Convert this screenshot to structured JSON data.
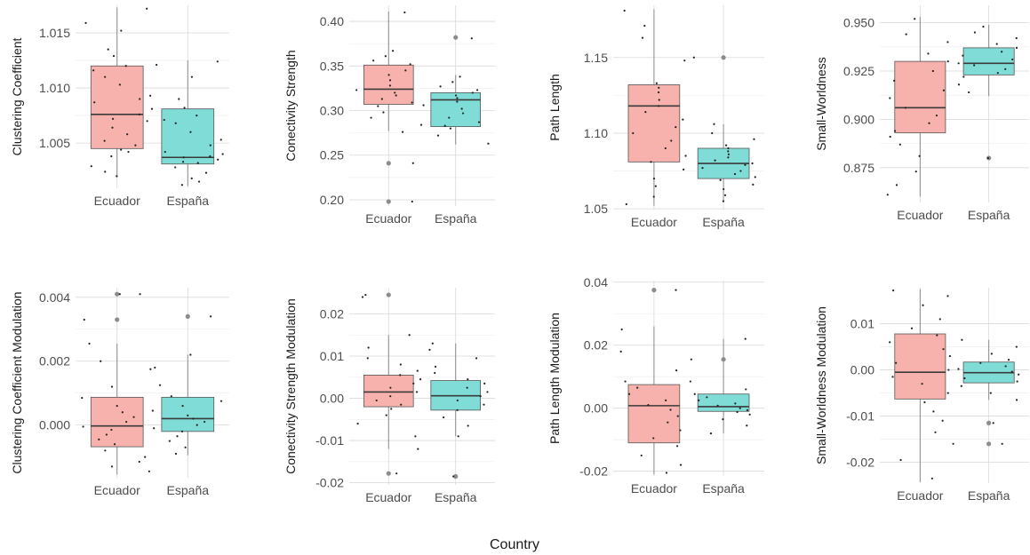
{
  "figure": {
    "xlabel": "Country"
  },
  "colors": {
    "Ecuador": "#f8b2ad",
    "España": "#7fdcd6",
    "grid": "#d9d9d9",
    "line": "#3a3a3a",
    "points": "#222222"
  },
  "chart_data": [
    {
      "type": "box",
      "ylabel": "Clustering Coefficient",
      "categories": [
        "Ecuador",
        "España"
      ],
      "ylim": [
        1.0009,
        1.0175
      ],
      "yticks": [
        1.005,
        1.01,
        1.015
      ],
      "ytick_labels": [
        "1.005",
        "1.010",
        "1.015"
      ],
      "boxes": [
        {
          "category": "Ecuador",
          "q1": 1.0045,
          "median": 1.0076,
          "q3": 1.012,
          "whisker_low": 1.0019,
          "whisker_high": 1.0173,
          "outliers": []
        },
        {
          "category": "España",
          "q1": 1.0031,
          "median": 1.0037,
          "q3": 1.0081,
          "whisker_low": 1.0011,
          "whisker_high": 1.0125,
          "outliers": []
        }
      ],
      "points": [
        {
          "category": "Ecuador",
          "y": [
            1.0172,
            1.0159,
            1.0152,
            1.0135,
            1.0129,
            1.012,
            1.0116,
            1.011,
            1.0103,
            1.0093,
            1.009,
            1.0087,
            1.0081,
            1.0076,
            1.0072,
            1.007,
            1.0064,
            1.0058,
            1.0052,
            1.0048,
            1.0044,
            1.0042,
            1.0038,
            1.0029,
            1.0024,
            1.002
          ]
        },
        {
          "category": "España",
          "y": [
            1.0124,
            1.0121,
            1.011,
            1.009,
            1.0082,
            1.0075,
            1.0071,
            1.0068,
            1.006,
            1.0053,
            1.0048,
            1.0042,
            1.004,
            1.0038,
            1.0037,
            1.0035,
            1.0033,
            1.0032,
            1.0028,
            1.0023,
            1.0018,
            1.0015,
            1.0012
          ]
        }
      ]
    },
    {
      "type": "box",
      "ylabel": "Conectivity Strength",
      "categories": [
        "Ecuador",
        "España"
      ],
      "ylim": [
        0.193,
        0.418
      ],
      "yticks": [
        0.2,
        0.25,
        0.3,
        0.35,
        0.4
      ],
      "ytick_labels": [
        "0.20",
        "0.25",
        "0.30",
        "0.35",
        "0.40"
      ],
      "boxes": [
        {
          "category": "Ecuador",
          "q1": 0.307,
          "median": 0.324,
          "q3": 0.351,
          "whisker_low": 0.277,
          "whisker_high": 0.411,
          "outliers": [
            0.241,
            0.198
          ]
        },
        {
          "category": "España",
          "q1": 0.282,
          "median": 0.312,
          "q3": 0.32,
          "whisker_low": 0.262,
          "whisker_high": 0.34,
          "outliers": [
            0.382
          ]
        }
      ],
      "points": [
        {
          "category": "Ecuador",
          "y": [
            0.41,
            0.367,
            0.361,
            0.356,
            0.352,
            0.345,
            0.34,
            0.334,
            0.328,
            0.323,
            0.32,
            0.317,
            0.313,
            0.309,
            0.305,
            0.298,
            0.292,
            0.284,
            0.276,
            0.241,
            0.198
          ]
        },
        {
          "category": "España",
          "y": [
            0.381,
            0.338,
            0.332,
            0.327,
            0.323,
            0.32,
            0.317,
            0.314,
            0.31,
            0.306,
            0.302,
            0.297,
            0.292,
            0.287,
            0.283,
            0.28,
            0.272,
            0.263
          ]
        }
      ]
    },
    {
      "type": "box",
      "ylabel": "Path Length",
      "categories": [
        "Ecuador",
        "España"
      ],
      "ylim": [
        1.0495,
        1.1845
      ],
      "yticks": [
        1.05,
        1.1,
        1.15
      ],
      "ytick_labels": [
        "1.05",
        "1.10",
        "1.15"
      ],
      "boxes": [
        {
          "category": "Ecuador",
          "q1": 1.081,
          "median": 1.118,
          "q3": 1.132,
          "whisker_low": 1.052,
          "whisker_high": 1.182,
          "outliers": []
        },
        {
          "category": "España",
          "q1": 1.07,
          "median": 1.08,
          "q3": 1.09,
          "whisker_low": 1.055,
          "whisker_high": 1.106,
          "outliers": [
            1.15
          ]
        }
      ],
      "points": [
        {
          "category": "Ecuador",
          "y": [
            1.181,
            1.171,
            1.163,
            1.148,
            1.133,
            1.13,
            1.127,
            1.122,
            1.118,
            1.114,
            1.109,
            1.104,
            1.1,
            1.095,
            1.09,
            1.085,
            1.081,
            1.076,
            1.07,
            1.065,
            1.058,
            1.053
          ]
        },
        {
          "category": "España",
          "y": [
            1.15,
            1.106,
            1.1,
            1.096,
            1.092,
            1.09,
            1.088,
            1.086,
            1.084,
            1.082,
            1.08,
            1.079,
            1.077,
            1.075,
            1.073,
            1.071,
            1.069,
            1.066,
            1.063,
            1.059,
            1.055
          ]
        }
      ]
    },
    {
      "type": "box",
      "ylabel": "Small-Worldness",
      "categories": [
        "Ecuador",
        "España"
      ],
      "ylim": [
        0.857,
        0.959
      ],
      "yticks": [
        0.875,
        0.9,
        0.925,
        0.95
      ],
      "ytick_labels": [
        "0.875",
        "0.900",
        "0.925",
        "0.950"
      ],
      "boxes": [
        {
          "category": "Ecuador",
          "q1": 0.893,
          "median": 0.906,
          "q3": 0.93,
          "whisker_low": 0.86,
          "whisker_high": 0.953,
          "outliers": []
        },
        {
          "category": "España",
          "q1": 0.923,
          "median": 0.929,
          "q3": 0.937,
          "whisker_low": 0.912,
          "whisker_high": 0.949,
          "outliers": [
            0.88
          ]
        }
      ],
      "points": [
        {
          "category": "Ecuador",
          "y": [
            0.952,
            0.944,
            0.94,
            0.934,
            0.93,
            0.925,
            0.92,
            0.915,
            0.911,
            0.906,
            0.902,
            0.898,
            0.894,
            0.891,
            0.887,
            0.881,
            0.873,
            0.866,
            0.861
          ]
        },
        {
          "category": "España",
          "y": [
            0.948,
            0.945,
            0.942,
            0.939,
            0.937,
            0.935,
            0.933,
            0.931,
            0.929,
            0.928,
            0.926,
            0.924,
            0.922,
            0.918,
            0.914,
            0.88
          ]
        }
      ]
    },
    {
      "type": "box",
      "ylabel": "Clustering Coefficient Modulation",
      "categories": [
        "Ecuador",
        "España"
      ],
      "ylim": [
        -0.00165,
        0.0043
      ],
      "yticks": [
        0.0,
        0.002,
        0.004
      ],
      "ytick_labels": [
        "0.000",
        "0.002",
        "0.004"
      ],
      "boxes": [
        {
          "category": "Ecuador",
          "q1": -0.00068,
          "median": -3e-05,
          "q3": 0.00087,
          "whisker_low": -0.00155,
          "whisker_high": 0.00255,
          "outliers": [
            0.0033,
            0.0041
          ]
        },
        {
          "category": "España",
          "q1": -0.0002,
          "median": 0.0002,
          "q3": 0.00087,
          "whisker_low": -0.00095,
          "whisker_high": 0.0022,
          "outliers": [
            0.0034
          ]
        }
      ],
      "points": [
        {
          "category": "Ecuador",
          "y": [
            0.0041,
            0.0041,
            0.0033,
            0.00255,
            0.002,
            0.00175,
            0.0012,
            0.00085,
            0.0006,
            0.0004,
            0.00025,
            0.0001,
            -5e-05,
            -0.00015,
            -0.0003,
            -0.00045,
            -0.0006,
            -0.0008,
            -0.001,
            -0.00115,
            -0.0013,
            -0.00145
          ]
        },
        {
          "category": "España",
          "y": [
            0.0034,
            0.0022,
            0.0018,
            0.00125,
            0.0009,
            0.00075,
            0.0006,
            0.00045,
            0.0003,
            0.0002,
            0.0001,
            0.0,
            -0.0001,
            -0.0002,
            -0.00035,
            -0.0005,
            -0.0007,
            -0.0009
          ]
        }
      ]
    },
    {
      "type": "box",
      "ylabel": "Conectivity Strength Modulation",
      "categories": [
        "Ecuador",
        "España"
      ],
      "ylim": [
        -0.0205,
        0.0262
      ],
      "yticks": [
        -0.02,
        -0.01,
        0.0,
        0.01,
        0.02
      ],
      "ytick_labels": [
        "-0.02",
        "-0.01",
        "0.00",
        "0.01",
        "0.02"
      ],
      "boxes": [
        {
          "category": "Ecuador",
          "q1": -0.002,
          "median": 0.0015,
          "q3": 0.0055,
          "whisker_low": -0.012,
          "whisker_high": 0.015,
          "outliers": [
            0.0245,
            -0.0178
          ]
        },
        {
          "category": "España",
          "q1": -0.0028,
          "median": 0.0006,
          "q3": 0.0042,
          "whisker_low": -0.009,
          "whisker_high": 0.013,
          "outliers": [
            -0.0185
          ]
        }
      ],
      "points": [
        {
          "category": "Ecuador",
          "y": [
            0.0245,
            0.024,
            0.015,
            0.012,
            0.0095,
            0.008,
            0.0065,
            0.0055,
            0.0045,
            0.0035,
            0.0025,
            0.0015,
            0.0005,
            -0.0005,
            -0.0015,
            -0.0025,
            -0.004,
            -0.006,
            -0.009,
            -0.012,
            -0.0178
          ]
        },
        {
          "category": "España",
          "y": [
            0.013,
            0.0115,
            0.0095,
            0.0075,
            0.006,
            0.0045,
            0.0035,
            0.0025,
            0.0015,
            0.0005,
            -0.0005,
            -0.0015,
            -0.0028,
            -0.0045,
            -0.0065,
            -0.009,
            -0.0185
          ]
        }
      ]
    },
    {
      "type": "box",
      "ylabel": "Path Length Modulation",
      "categories": [
        "Ecuador",
        "España"
      ],
      "ylim": [
        -0.0215,
        0.0405
      ],
      "yticks": [
        -0.02,
        0.0,
        0.02,
        0.04
      ],
      "ytick_labels": [
        "-0.02",
        "0.00",
        "0.02",
        "0.04"
      ],
      "boxes": [
        {
          "category": "Ecuador",
          "q1": -0.011,
          "median": 0.0008,
          "q3": 0.0075,
          "whisker_low": -0.021,
          "whisker_high": 0.026,
          "outliers": [
            0.0375
          ]
        },
        {
          "category": "España",
          "q1": -0.001,
          "median": 0.0005,
          "q3": 0.0045,
          "whisker_low": -0.008,
          "whisker_high": 0.022,
          "outliers": [
            0.0155
          ]
        }
      ],
      "points": [
        {
          "category": "Ecuador",
          "y": [
            0.0375,
            0.025,
            0.018,
            0.012,
            0.0085,
            0.0065,
            0.0045,
            0.0025,
            0.001,
            -0.0005,
            -0.0025,
            -0.0045,
            -0.007,
            -0.0095,
            -0.012,
            -0.015,
            -0.018,
            -0.0205
          ]
        },
        {
          "category": "España",
          "y": [
            0.022,
            0.0155,
            0.0085,
            0.006,
            0.0045,
            0.0035,
            0.0025,
            0.0015,
            0.0008,
            0.0,
            -0.0006,
            -0.0012,
            -0.002,
            -0.0035,
            -0.0055,
            -0.008
          ]
        }
      ]
    },
    {
      "type": "box",
      "ylabel": "Small-Worldness Modulation",
      "categories": [
        "Ecuador",
        "España"
      ],
      "ylim": [
        -0.0245,
        0.0178
      ],
      "yticks": [
        -0.02,
        -0.01,
        0.0,
        0.01
      ],
      "ytick_labels": [
        "-0.02",
        "-0.01",
        "0.00",
        "0.01"
      ],
      "boxes": [
        {
          "category": "Ecuador",
          "q1": -0.0063,
          "median": -0.0005,
          "q3": 0.0078,
          "whisker_low": -0.0243,
          "whisker_high": 0.0175,
          "outliers": []
        },
        {
          "category": "España",
          "q1": -0.0028,
          "median": -0.0006,
          "q3": 0.0017,
          "whisker_low": -0.0065,
          "whisker_high": 0.0065,
          "outliers": [
            -0.016,
            -0.0115
          ]
        }
      ],
      "points": [
        {
          "category": "Ecuador",
          "y": [
            0.0172,
            0.016,
            0.014,
            0.011,
            0.009,
            0.0075,
            0.006,
            0.0045,
            0.003,
            0.0015,
            0.0,
            -0.0015,
            -0.003,
            -0.005,
            -0.007,
            -0.009,
            -0.011,
            -0.0135,
            -0.016,
            -0.0195,
            -0.0235
          ]
        },
        {
          "category": "España",
          "y": [
            0.0065,
            0.005,
            0.0035,
            0.0022,
            0.0015,
            0.0008,
            0.0002,
            -0.0004,
            -0.001,
            -0.0018,
            -0.0025,
            -0.0035,
            -0.005,
            -0.0065,
            -0.0115,
            -0.016
          ]
        }
      ]
    }
  ]
}
